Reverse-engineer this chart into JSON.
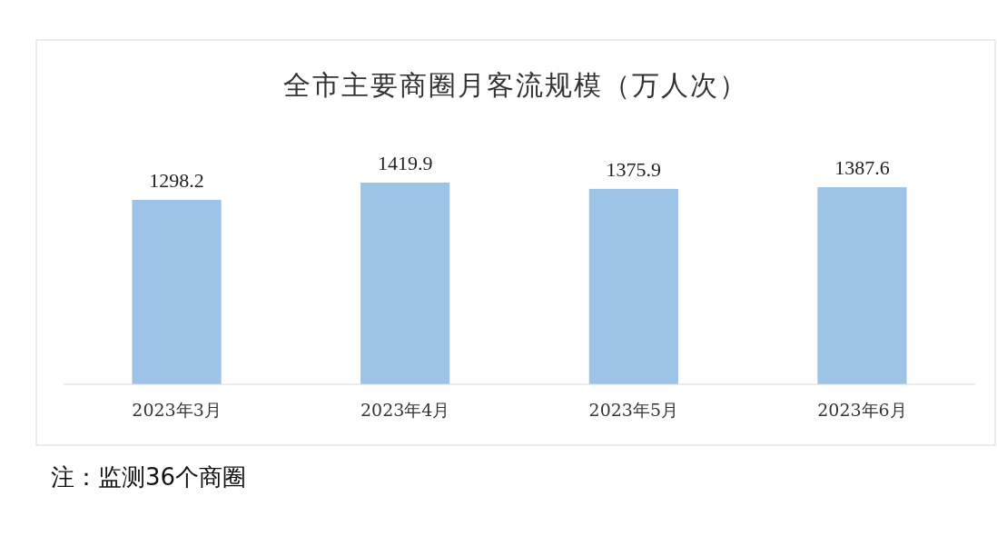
{
  "chart_data": {
    "type": "bar",
    "title": "全市主要商圈月客流规模（万人次）",
    "categories": [
      "2023年3月",
      "2023年4月",
      "2023年5月",
      "2023年6月"
    ],
    "values": [
      1298.2,
      1419.9,
      1375.9,
      1387.6
    ],
    "color": "#9dc3e6",
    "data_labels": true,
    "annotations": [
      "注：监测36个商圈"
    ]
  }
}
